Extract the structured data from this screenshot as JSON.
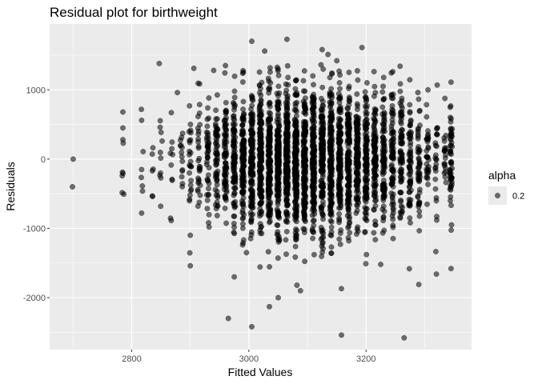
{
  "chart_data": {
    "type": "scatter",
    "title": "Residual plot for birthweight",
    "xlabel": "Fitted Values",
    "ylabel": "Residuals",
    "xlim": [
      2660,
      3380
    ],
    "ylim": [
      -2750,
      1950
    ],
    "x_ticks": [
      2800,
      3000,
      3200
    ],
    "x_tick_labels": [
      "2800",
      "3000",
      "3200"
    ],
    "y_ticks": [
      -2000,
      -1000,
      0,
      1000
    ],
    "y_tick_labels": [
      "-2000",
      "-1000",
      "0",
      "1000"
    ],
    "grid": true,
    "point_color": "#000000",
    "point_opacity": 0.55,
    "legend": {
      "title": "alpha",
      "label": "0.2",
      "position": "right"
    },
    "columns": [
      {
        "x": 2700,
        "n": 1,
        "sd": 0
      },
      {
        "x": 2785,
        "n": 6,
        "sd": 250
      },
      {
        "x": 2818,
        "n": 5,
        "sd": 500
      },
      {
        "x": 2835,
        "n": 6,
        "sd": 300
      },
      {
        "x": 2850,
        "n": 10,
        "sd": 450
      },
      {
        "x": 2868,
        "n": 10,
        "sd": 400
      },
      {
        "x": 2885,
        "n": 14,
        "sd": 380
      },
      {
        "x": 2900,
        "n": 25,
        "sd": 420
      },
      {
        "x": 2915,
        "n": 30,
        "sd": 430
      },
      {
        "x": 2930,
        "n": 45,
        "sd": 440
      },
      {
        "x": 2945,
        "n": 60,
        "sd": 450
      },
      {
        "x": 2960,
        "n": 80,
        "sd": 460
      },
      {
        "x": 2975,
        "n": 100,
        "sd": 470
      },
      {
        "x": 2990,
        "n": 130,
        "sd": 480
      },
      {
        "x": 3005,
        "n": 160,
        "sd": 490
      },
      {
        "x": 3020,
        "n": 170,
        "sd": 500
      },
      {
        "x": 3035,
        "n": 180,
        "sd": 500
      },
      {
        "x": 3050,
        "n": 190,
        "sd": 510
      },
      {
        "x": 3065,
        "n": 195,
        "sd": 510
      },
      {
        "x": 3080,
        "n": 190,
        "sd": 510
      },
      {
        "x": 3095,
        "n": 185,
        "sd": 500
      },
      {
        "x": 3110,
        "n": 180,
        "sd": 500
      },
      {
        "x": 3125,
        "n": 175,
        "sd": 500
      },
      {
        "x": 3140,
        "n": 170,
        "sd": 500
      },
      {
        "x": 3155,
        "n": 160,
        "sd": 500
      },
      {
        "x": 3170,
        "n": 150,
        "sd": 490
      },
      {
        "x": 3185,
        "n": 140,
        "sd": 480
      },
      {
        "x": 3200,
        "n": 125,
        "sd": 470
      },
      {
        "x": 3215,
        "n": 110,
        "sd": 470
      },
      {
        "x": 3230,
        "n": 95,
        "sd": 460
      },
      {
        "x": 3245,
        "n": 85,
        "sd": 450
      },
      {
        "x": 3260,
        "n": 75,
        "sd": 450
      },
      {
        "x": 3275,
        "n": 65,
        "sd": 440
      },
      {
        "x": 3290,
        "n": 50,
        "sd": 430
      },
      {
        "x": 3305,
        "n": 35,
        "sd": 420
      },
      {
        "x": 3320,
        "n": 25,
        "sd": 420
      },
      {
        "x": 3335,
        "n": 20,
        "sd": 400
      },
      {
        "x": 3345,
        "n": 55,
        "sd": 420
      }
    ],
    "points": [
      {
        "x": 2699,
        "y": -400
      },
      {
        "x": 2785,
        "y": 680
      },
      {
        "x": 2785,
        "y": 450
      },
      {
        "x": 2785,
        "y": 280
      },
      {
        "x": 2817,
        "y": 560
      },
      {
        "x": 2817,
        "y": -150
      },
      {
        "x": 2817,
        "y": -780
      },
      {
        "x": 2847,
        "y": 1380
      },
      {
        "x": 2878,
        "y": 960
      },
      {
        "x": 2900,
        "y": -1100
      },
      {
        "x": 2900,
        "y": -1540
      },
      {
        "x": 2906,
        "y": 1310
      },
      {
        "x": 2940,
        "y": 1280
      },
      {
        "x": 2960,
        "y": 1350
      },
      {
        "x": 2965,
        "y": -2300
      },
      {
        "x": 2975,
        "y": -1700
      },
      {
        "x": 2996,
        "y": -1350
      },
      {
        "x": 3005,
        "y": 1700
      },
      {
        "x": 3005,
        "y": -2420
      },
      {
        "x": 3027,
        "y": 1560
      },
      {
        "x": 3035,
        "y": -2130
      },
      {
        "x": 3050,
        "y": -2000
      },
      {
        "x": 3065,
        "y": 1730
      },
      {
        "x": 3082,
        "y": -1820
      },
      {
        "x": 3088,
        "y": -1900
      },
      {
        "x": 3125,
        "y": 1580
      },
      {
        "x": 3135,
        "y": 1510
      },
      {
        "x": 3150,
        "y": 1420
      },
      {
        "x": 3158,
        "y": -2540
      },
      {
        "x": 3158,
        "y": -1870
      },
      {
        "x": 3193,
        "y": 1610
      },
      {
        "x": 3225,
        "y": -1520
      },
      {
        "x": 3258,
        "y": 1340
      },
      {
        "x": 3265,
        "y": -2580
      },
      {
        "x": 3290,
        "y": -1810
      },
      {
        "x": 3320,
        "y": -1660
      },
      {
        "x": 3345,
        "y": 1110
      },
      {
        "x": 3345,
        "y": -1580
      }
    ]
  }
}
